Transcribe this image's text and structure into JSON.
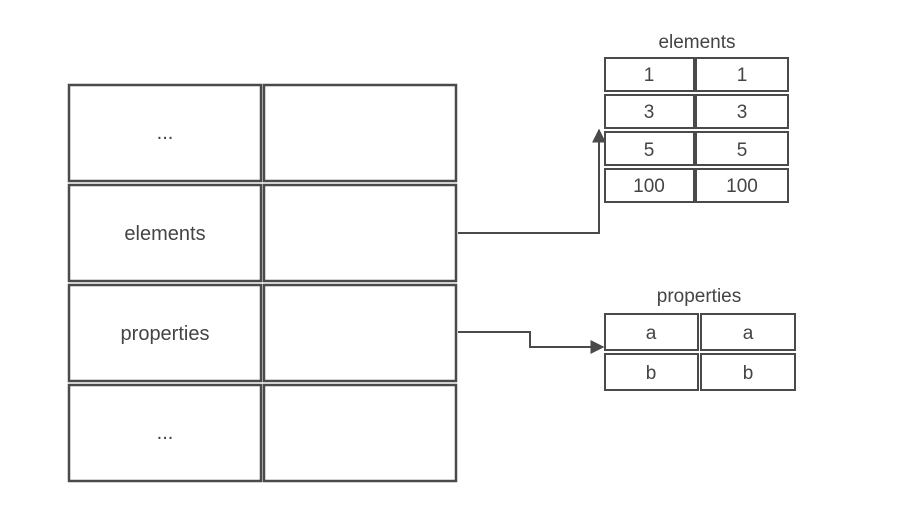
{
  "main_table": {
    "rows": [
      {
        "key": "...",
        "value": ""
      },
      {
        "key": "elements",
        "value": ""
      },
      {
        "key": "properties",
        "value": ""
      },
      {
        "key": "...",
        "value": ""
      }
    ]
  },
  "elements_table": {
    "title": "elements",
    "rows": [
      [
        "1",
        "1"
      ],
      [
        "3",
        "3"
      ],
      [
        "5",
        "5"
      ],
      [
        "100",
        "100"
      ]
    ]
  },
  "properties_table": {
    "title": "properties",
    "rows": [
      [
        "a",
        "a"
      ],
      [
        "b",
        "b"
      ]
    ]
  },
  "colors": {
    "stroke": "#4a4a4a",
    "text": "#444444",
    "background": "#ffffff"
  }
}
